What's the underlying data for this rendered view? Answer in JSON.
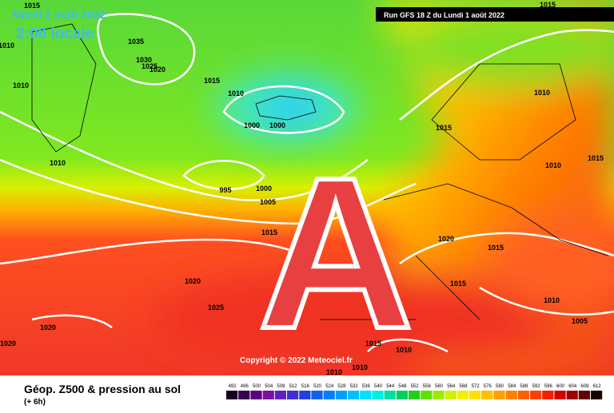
{
  "header": {
    "date": "Mardi 2 août 2022",
    "local_time": "2:00 locale",
    "run": "Run GFS 18 Z du Lundi 1 août 2022"
  },
  "map": {
    "watermark": "A",
    "copyright": "Copyright © 2022 Meteociel.fr",
    "isobar_labels": [
      1015,
      1010,
      1035,
      1030,
      1025,
      1020,
      1010,
      1015,
      1010,
      1000,
      1000,
      1010,
      995,
      1000,
      1005,
      1015,
      1020,
      1025,
      1020,
      1020,
      1015,
      1010,
      1015,
      1010,
      1015,
      1020,
      1015,
      1015,
      1010,
      1005,
      1015,
      1010,
      1010,
      1010
    ]
  },
  "legend": {
    "title": "Géop. Z500 & pression au sol",
    "lead_time": "(+ 6h)",
    "levels": [
      492,
      496,
      500,
      504,
      508,
      512,
      516,
      520,
      524,
      528,
      532,
      536,
      540,
      544,
      548,
      552,
      556,
      560,
      564,
      568,
      572,
      576,
      580,
      584,
      588,
      592,
      596,
      600,
      604,
      608,
      612
    ],
    "colors": [
      "#1a0020",
      "#3a0050",
      "#5a0080",
      "#7a10a0",
      "#6020c0",
      "#4030d0",
      "#2040e0",
      "#1060f0",
      "#0080ff",
      "#00a0ff",
      "#00c0ff",
      "#00e0ff",
      "#00f0e0",
      "#00e0a0",
      "#00d060",
      "#20d020",
      "#60e000",
      "#a0e800",
      "#d0f000",
      "#f0f000",
      "#ffe000",
      "#ffc000",
      "#ffa000",
      "#ff8000",
      "#ff6000",
      "#ff4000",
      "#f02000",
      "#d00000",
      "#a00000",
      "#600000",
      "#200000"
    ]
  }
}
